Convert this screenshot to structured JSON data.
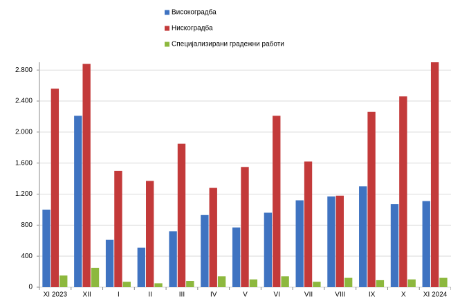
{
  "chart_data": {
    "type": "bar",
    "categories": [
      "XI 2023",
      "XII",
      "I",
      "II",
      "III",
      "IV",
      "V",
      "VI",
      "VII",
      "VIII",
      "IX",
      "X",
      "XI 2024"
    ],
    "series": [
      {
        "name": "Високоградба",
        "color": "#3f73c1",
        "values": [
          1000,
          2210,
          610,
          510,
          720,
          930,
          770,
          960,
          1120,
          1170,
          1300,
          1070,
          1110
        ]
      },
      {
        "name": "Нискоградба",
        "color": "#c33a3a",
        "values": [
          2560,
          2880,
          1500,
          1370,
          1850,
          1280,
          1550,
          2210,
          1620,
          1180,
          2260,
          2460,
          2900
        ]
      },
      {
        "name": "Специјализирани градежни работи",
        "color": "#8db83e",
        "values": [
          150,
          250,
          70,
          50,
          80,
          140,
          100,
          140,
          70,
          120,
          90,
          100,
          120
        ]
      }
    ],
    "ylim": [
      0,
      2900
    ],
    "yticks": [
      0,
      400,
      800,
      {
        "value": 1200,
        "label": "1.200"
      },
      {
        "value": 1600,
        "label": "1.600"
      },
      {
        "value": 2000,
        "label": "2.000"
      },
      {
        "value": 2400,
        "label": "2.400"
      },
      {
        "value": 2800,
        "label": "2.800"
      }
    ],
    "grid": true
  }
}
